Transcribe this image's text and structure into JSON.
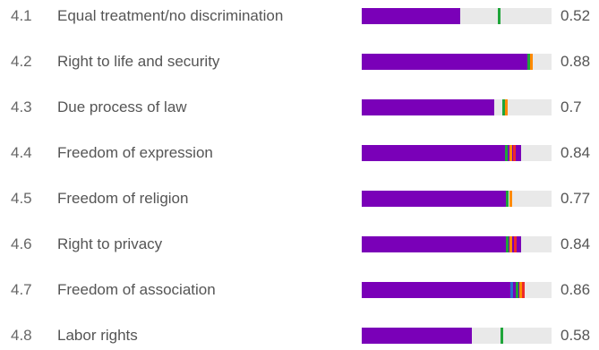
{
  "colors": {
    "bar_fill": "#7a00b8",
    "bar_track": "#e9e9e9",
    "marker_green": "#1fa53a",
    "marker_orange": "#ff8a00",
    "marker_red": "#ee2a2a",
    "marker_blue": "#2a6fcc"
  },
  "rows": [
    {
      "num": "4.1",
      "label": "Equal treatment/no discrimination",
      "score": "0.52",
      "value": 0.52,
      "markers": [
        {
          "value": 0.72,
          "color": "#1fa53a"
        }
      ]
    },
    {
      "num": "4.2",
      "label": "Right to life and security",
      "score": "0.88",
      "value": 0.88,
      "markers": [
        {
          "value": 0.878,
          "color": "#1fa53a"
        },
        {
          "value": 0.892,
          "color": "#ff8a00"
        }
      ]
    },
    {
      "num": "4.3",
      "label": "Due process of law",
      "score": "0.7",
      "value": 0.7,
      "markers": [
        {
          "value": 0.745,
          "color": "#1fa53a"
        },
        {
          "value": 0.76,
          "color": "#ff8a00"
        }
      ]
    },
    {
      "num": "4.4",
      "label": "Freedom of expression",
      "score": "0.84",
      "value": 0.84,
      "markers": [
        {
          "value": 0.76,
          "color": "#1fa53a"
        },
        {
          "value": 0.785,
          "color": "#ff8a00"
        },
        {
          "value": 0.8,
          "color": "#ee2a2a"
        }
      ]
    },
    {
      "num": "4.5",
      "label": "Freedom of religion",
      "score": "0.77",
      "value": 0.77,
      "markers": [
        {
          "value": 0.765,
          "color": "#1fa53a"
        },
        {
          "value": 0.785,
          "color": "#ff8a00"
        }
      ]
    },
    {
      "num": "4.6",
      "label": "Right to privacy",
      "score": "0.84",
      "value": 0.84,
      "markers": [
        {
          "value": 0.765,
          "color": "#1fa53a"
        },
        {
          "value": 0.785,
          "color": "#ff8a00"
        },
        {
          "value": 0.805,
          "color": "#ee2a2a"
        }
      ]
    },
    {
      "num": "4.7",
      "label": "Freedom of association",
      "score": "0.86",
      "value": 0.86,
      "markers": [
        {
          "value": 0.79,
          "color": "#2a6fcc"
        },
        {
          "value": 0.815,
          "color": "#1fa53a"
        },
        {
          "value": 0.835,
          "color": "#ff8a00"
        },
        {
          "value": 0.85,
          "color": "#ee2a2a"
        }
      ]
    },
    {
      "num": "4.8",
      "label": "Labor rights",
      "score": "0.58",
      "value": 0.58,
      "markers": [
        {
          "value": 0.735,
          "color": "#1fa53a"
        }
      ]
    }
  ]
}
